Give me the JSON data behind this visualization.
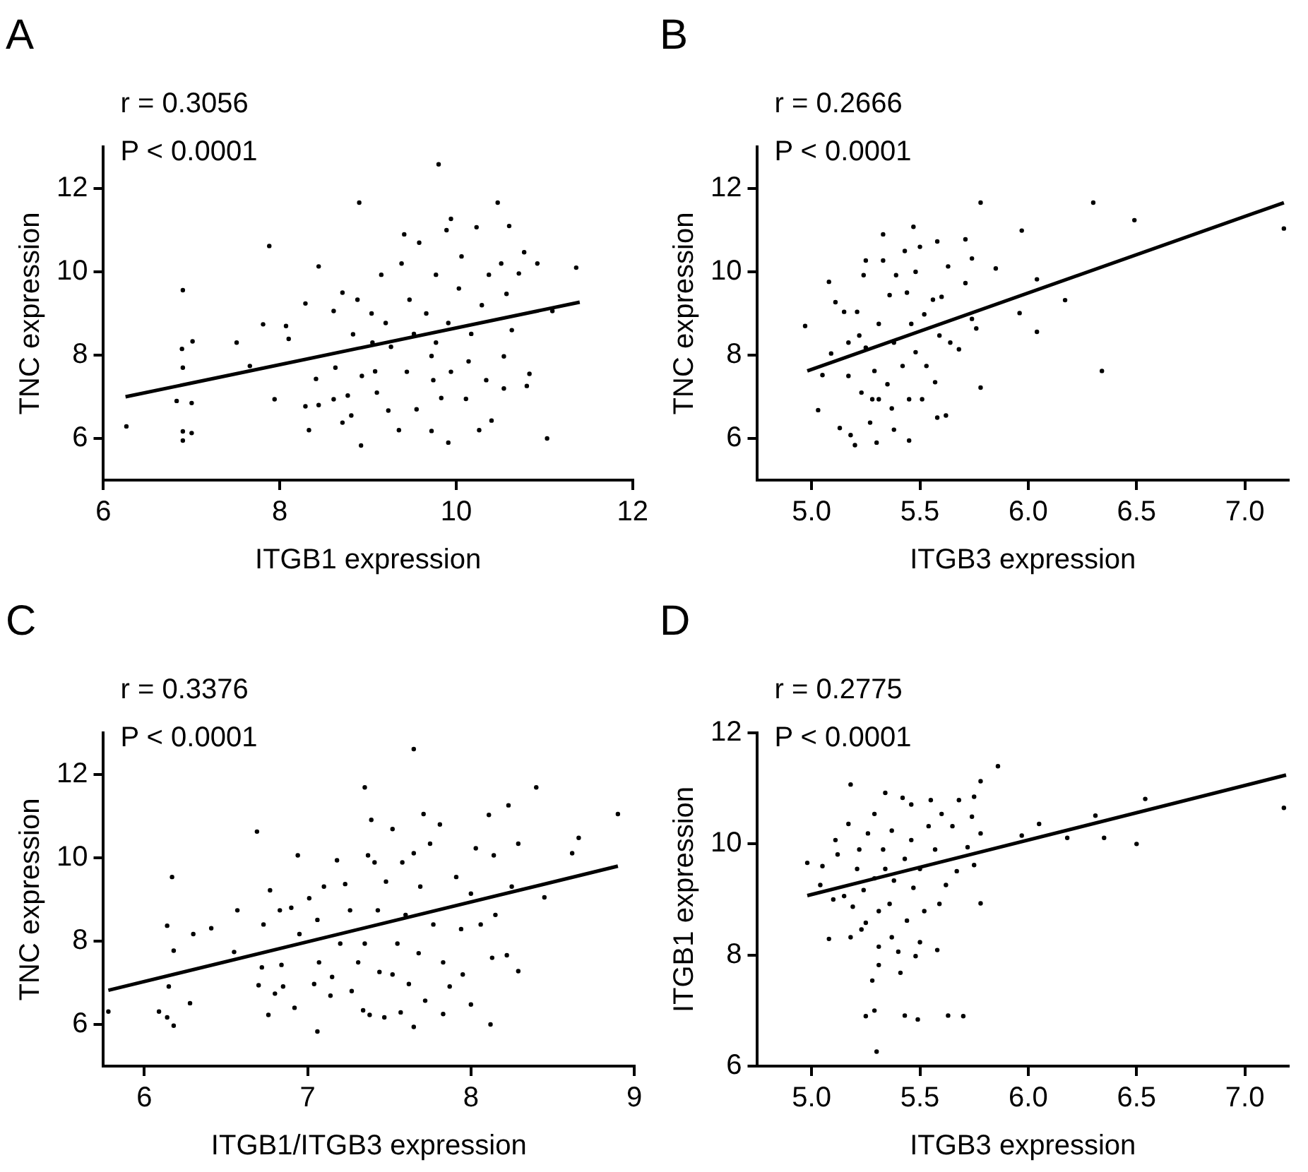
{
  "chart_data": [
    {
      "type": "scatter",
      "title": "A",
      "xlabel": "ITGB1 expression",
      "ylabel": "TNC expression",
      "annotations": [
        "r = 0.3056",
        "P < 0.0001"
      ],
      "xlim": [
        6,
        12
      ],
      "xticks": [
        6,
        8,
        10,
        12
      ],
      "ylim": [
        5,
        13
      ],
      "yticks": [
        6,
        8,
        10,
        12
      ],
      "grid": false,
      "legend": false,
      "marker": "circle",
      "series": [
        {
          "type": "scatter",
          "color": "#000000",
          "x": [
            6.26,
            6.9,
            6.89,
            6.9,
            6.83,
            6.9,
            6.9,
            7.01,
            7.0,
            7.0,
            7.51,
            7.81,
            7.88,
            7.66,
            7.94,
            8.07,
            8.1,
            8.29,
            8.44,
            8.33,
            8.29,
            8.44,
            8.41,
            8.61,
            8.63,
            8.61,
            8.71,
            8.71,
            8.77,
            8.81,
            8.83,
            8.9,
            8.92,
            8.88,
            8.93,
            9.04,
            9.05,
            9.08,
            9.1,
            9.15,
            9.2,
            9.23,
            9.26,
            9.41,
            9.38,
            9.35,
            9.44,
            9.47,
            9.52,
            9.55,
            9.58,
            9.66,
            9.72,
            9.72,
            9.74,
            9.8,
            9.77,
            9.83,
            9.89,
            9.91,
            9.94,
            9.91,
            9.94,
            10.03,
            10.06,
            10.11,
            10.17,
            10.23,
            10.26,
            10.29,
            10.34,
            10.37,
            10.4,
            10.47,
            10.51,
            10.54,
            10.57,
            10.6,
            10.63,
            10.54,
            10.71,
            10.77,
            10.8,
            10.83,
            10.92,
            11.03,
            11.09,
            11.36,
            9.77,
            10.14
          ],
          "values": [
            6.29,
            9.56,
            8.15,
            7.7,
            6.9,
            6.17,
            5.95,
            8.33,
            6.85,
            6.13,
            8.3,
            8.74,
            10.62,
            7.74,
            6.94,
            8.7,
            8.39,
            9.24,
            10.13,
            6.2,
            6.77,
            6.8,
            7.43,
            6.94,
            7.7,
            9.06,
            9.5,
            6.38,
            7.03,
            6.55,
            8.5,
            11.66,
            5.83,
            9.33,
            7.5,
            9.0,
            8.3,
            7.61,
            7.1,
            9.93,
            8.77,
            6.67,
            8.2,
            10.9,
            10.2,
            6.2,
            7.6,
            9.33,
            8.51,
            6.7,
            10.7,
            9.0,
            7.98,
            6.18,
            7.4,
            12.58,
            9.93,
            6.97,
            11.0,
            8.77,
            11.27,
            5.9,
            7.6,
            9.6,
            10.37,
            6.95,
            8.51,
            11.07,
            6.2,
            9.2,
            7.4,
            9.93,
            6.43,
            11.66,
            10.2,
            7.97,
            9.47,
            11.1,
            8.6,
            7.2,
            9.96,
            10.47,
            7.26,
            7.55,
            10.2,
            6.0,
            9.06,
            10.1,
            8.3,
            7.85
          ]
        },
        {
          "type": "line",
          "color": "#000000",
          "marker": "none",
          "x": [
            6.25,
            11.4
          ],
          "values": [
            7.0,
            9.27
          ]
        }
      ]
    },
    {
      "type": "scatter",
      "title": "B",
      "xlabel": "ITGB3 expression",
      "ylabel": "TNC expression",
      "annotations": [
        "r = 0.2666",
        "P < 0.0001"
      ],
      "xlim": [
        4.75,
        7.2
      ],
      "xticks": [
        {
          "value": 5,
          "label": "5.0"
        },
        5.5,
        {
          "value": 6,
          "label": "6.0"
        },
        6.5,
        {
          "value": 7,
          "label": "7.0"
        }
      ],
      "ylim": [
        5,
        13
      ],
      "yticks": [
        6,
        8,
        10,
        12
      ],
      "grid": false,
      "legend": false,
      "marker": "circle",
      "series": [
        {
          "type": "scatter",
          "color": "#000000",
          "x": [
            4.97,
            5.03,
            5.05,
            5.08,
            5.09,
            5.11,
            5.13,
            5.15,
            5.17,
            5.18,
            5.17,
            5.2,
            5.21,
            5.23,
            5.24,
            5.25,
            5.25,
            5.27,
            5.28,
            5.29,
            5.3,
            5.31,
            5.33,
            5.33,
            5.35,
            5.36,
            5.37,
            5.38,
            5.38,
            5.39,
            5.42,
            5.43,
            5.44,
            5.45,
            5.45,
            5.46,
            5.47,
            5.48,
            5.48,
            5.5,
            5.51,
            5.52,
            5.53,
            5.56,
            5.57,
            5.58,
            5.58,
            5.59,
            5.6,
            5.62,
            5.63,
            5.64,
            5.68,
            5.71,
            5.71,
            5.74,
            5.74,
            5.76,
            5.78,
            5.78,
            5.85,
            5.96,
            5.97,
            6.04,
            6.04,
            6.17,
            6.3,
            6.34,
            6.49,
            7.18,
            5.31,
            5.22
          ],
          "values": [
            8.7,
            6.68,
            7.52,
            9.76,
            8.04,
            9.27,
            6.25,
            9.04,
            8.3,
            6.08,
            7.5,
            5.84,
            9.04,
            7.1,
            9.92,
            10.27,
            8.18,
            6.38,
            6.94,
            7.62,
            5.9,
            8.75,
            10.9,
            10.27,
            7.3,
            9.44,
            6.72,
            6.21,
            8.3,
            9.92,
            7.74,
            10.5,
            9.5,
            5.95,
            6.94,
            8.75,
            11.08,
            10.0,
            8.07,
            10.6,
            6.94,
            8.98,
            7.74,
            9.33,
            7.35,
            10.73,
            6.5,
            8.47,
            9.4,
            6.55,
            10.13,
            8.3,
            8.14,
            9.73,
            10.78,
            10.32,
            8.87,
            8.64,
            11.66,
            7.22,
            10.08,
            9.01,
            10.99,
            8.56,
            9.82,
            9.32,
            11.66,
            7.62,
            11.24,
            11.04,
            6.94,
            8.47
          ]
        },
        {
          "type": "line",
          "color": "#000000",
          "marker": "none",
          "x": [
            4.98,
            7.18
          ],
          "values": [
            7.62,
            11.66
          ]
        }
      ]
    },
    {
      "type": "scatter",
      "title": "C",
      "xlabel": "ITGB1/ITGB3 expression",
      "ylabel": "TNC expression",
      "annotations": [
        "r = 0.3376",
        "P < 0.0001"
      ],
      "xlim": [
        5.75,
        9
      ],
      "xticks": [
        6,
        7,
        8,
        9
      ],
      "ylim": [
        5,
        13
      ],
      "yticks": [
        6,
        8,
        10,
        12
      ],
      "grid": false,
      "legend": false,
      "marker": "circle",
      "series": [
        {
          "type": "scatter",
          "color": "#000000",
          "x": [
            5.78,
            6.09,
            6.14,
            6.15,
            6.14,
            6.17,
            6.18,
            6.18,
            6.28,
            6.3,
            6.41,
            6.55,
            6.57,
            6.69,
            6.7,
            6.72,
            6.73,
            6.76,
            6.77,
            6.8,
            6.83,
            6.84,
            6.85,
            6.9,
            6.92,
            6.94,
            6.95,
            7.01,
            7.04,
            7.06,
            7.06,
            7.07,
            7.1,
            7.14,
            7.15,
            7.18,
            7.2,
            7.23,
            7.26,
            7.27,
            7.31,
            7.34,
            7.35,
            7.35,
            7.37,
            7.38,
            7.39,
            7.41,
            7.43,
            7.44,
            7.47,
            7.48,
            7.52,
            7.52,
            7.55,
            7.57,
            7.58,
            7.6,
            7.62,
            7.65,
            7.65,
            7.65,
            7.68,
            7.69,
            7.71,
            7.72,
            7.75,
            7.77,
            7.81,
            7.83,
            7.83,
            7.87,
            7.91,
            7.94,
            7.95,
            8.0,
            8.0,
            8.03,
            8.06,
            8.11,
            8.12,
            8.13,
            8.14,
            8.15,
            8.23,
            8.22,
            8.29,
            8.29,
            8.4,
            8.45,
            8.62,
            8.66,
            8.9,
            8.25
          ],
          "values": [
            6.31,
            6.31,
            8.37,
            6.91,
            6.17,
            9.54,
            7.77,
            5.97,
            6.51,
            8.17,
            8.31,
            7.74,
            8.74,
            10.63,
            6.94,
            7.37,
            8.4,
            6.23,
            9.22,
            6.74,
            8.74,
            7.43,
            6.91,
            8.8,
            6.4,
            10.06,
            8.17,
            9.03,
            6.97,
            8.51,
            5.83,
            7.49,
            9.31,
            6.69,
            7.14,
            9.94,
            7.94,
            9.37,
            8.74,
            6.8,
            7.49,
            6.34,
            11.69,
            7.94,
            10.06,
            6.23,
            10.91,
            9.89,
            8.74,
            7.26,
            6.17,
            9.43,
            10.69,
            7.2,
            7.94,
            6.29,
            9.89,
            8.63,
            6.97,
            12.61,
            5.94,
            10.11,
            7.71,
            9.31,
            11.05,
            6.57,
            10.34,
            8.4,
            10.8,
            6.25,
            7.49,
            6.91,
            9.54,
            8.29,
            7.2,
            6.48,
            9.14,
            10.23,
            8.4,
            11.03,
            6.0,
            7.6,
            10.06,
            8.63,
            11.26,
            7.66,
            10.34,
            7.28,
            11.69,
            9.05,
            10.11,
            10.48,
            11.05,
            9.31
          ]
        },
        {
          "type": "line",
          "color": "#000000",
          "marker": "none",
          "x": [
            5.78,
            8.9
          ],
          "values": [
            6.82,
            9.8
          ]
        }
      ]
    },
    {
      "type": "scatter",
      "title": "D",
      "xlabel": "ITGB3 expression",
      "ylabel": "ITGB1 expression",
      "annotations": [
        "r = 0.2775",
        "P < 0.0001"
      ],
      "xlim": [
        4.75,
        7.2
      ],
      "xticks": [
        {
          "value": 5,
          "label": "5.0"
        },
        5.5,
        {
          "value": 6,
          "label": "6.0"
        },
        6.5,
        {
          "value": 7,
          "label": "7.0"
        }
      ],
      "ylim": [
        6,
        12
      ],
      "yticks": [
        6,
        8,
        10,
        12
      ],
      "grid": false,
      "legend": false,
      "marker": "circle",
      "series": [
        {
          "type": "scatter",
          "color": "#000000",
          "x": [
            4.98,
            5.05,
            5.04,
            5.08,
            5.1,
            5.11,
            5.12,
            5.15,
            5.17,
            5.18,
            5.18,
            5.19,
            5.21,
            5.22,
            5.23,
            5.24,
            5.25,
            5.25,
            5.26,
            5.28,
            5.29,
            5.29,
            5.29,
            5.3,
            5.31,
            5.31,
            5.31,
            5.33,
            5.34,
            5.34,
            5.36,
            5.37,
            5.37,
            5.38,
            5.4,
            5.41,
            5.42,
            5.43,
            5.43,
            5.44,
            5.46,
            5.46,
            5.47,
            5.48,
            5.49,
            5.5,
            5.5,
            5.52,
            5.54,
            5.55,
            5.57,
            5.58,
            5.59,
            5.6,
            5.62,
            5.63,
            5.65,
            5.67,
            5.68,
            5.7,
            5.72,
            5.74,
            5.75,
            5.75,
            5.78,
            5.78,
            5.78,
            5.86,
            5.97,
            6.05,
            6.18,
            6.31,
            6.35,
            6.5,
            6.54,
            7.18
          ],
          "values": [
            9.66,
            9.6,
            9.26,
            8.29,
            9.0,
            10.07,
            9.81,
            9.06,
            10.36,
            11.07,
            8.32,
            8.87,
            9.55,
            9.9,
            8.46,
            9.17,
            8.58,
            6.9,
            10.19,
            7.54,
            7.0,
            10.54,
            9.38,
            6.26,
            8.15,
            8.79,
            7.82,
            9.9,
            10.92,
            9.55,
            8.92,
            8.32,
            10.24,
            9.34,
            8.06,
            7.68,
            10.83,
            9.73,
            6.91,
            8.62,
            10.07,
            10.71,
            9.21,
            7.98,
            6.84,
            8.23,
            9.55,
            8.79,
            10.32,
            10.79,
            9.9,
            8.09,
            8.92,
            10.54,
            9.26,
            6.91,
            10.32,
            9.51,
            10.79,
            6.9,
            9.94,
            10.49,
            9.62,
            10.85,
            11.13,
            8.93,
            10.19,
            11.4,
            10.15,
            10.36,
            10.11,
            10.51,
            10.11,
            10.0,
            10.81,
            10.65
          ]
        },
        {
          "type": "line",
          "color": "#000000",
          "marker": "none",
          "x": [
            4.98,
            7.19
          ],
          "values": [
            9.07,
            11.24
          ]
        }
      ]
    }
  ]
}
